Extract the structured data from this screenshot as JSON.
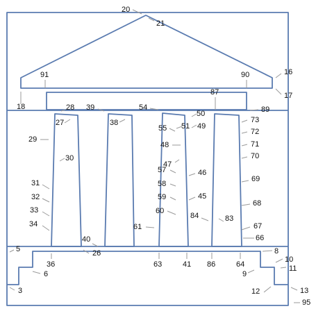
{
  "colors": {
    "stroke": "#5a7bb0",
    "leader": "#9a9a9a",
    "text": "#111111",
    "background": "#ffffff"
  },
  "labels": [
    "20",
    "21",
    "16",
    "17",
    "91",
    "90",
    "87",
    "18",
    "28",
    "39",
    "54",
    "50",
    "89",
    "27",
    "38",
    "55",
    "51",
    "49",
    "73",
    "72",
    "29",
    "48",
    "71",
    "30",
    "70",
    "57",
    "47",
    "46",
    "69",
    "58",
    "31",
    "59",
    "45",
    "32",
    "68",
    "33",
    "60",
    "84",
    "83",
    "34",
    "61",
    "67",
    "40",
    "66",
    "26",
    "5",
    "8",
    "36",
    "63",
    "41",
    "86",
    "64",
    "10",
    "6",
    "9",
    "11",
    "3",
    "12",
    "13",
    "95"
  ]
}
